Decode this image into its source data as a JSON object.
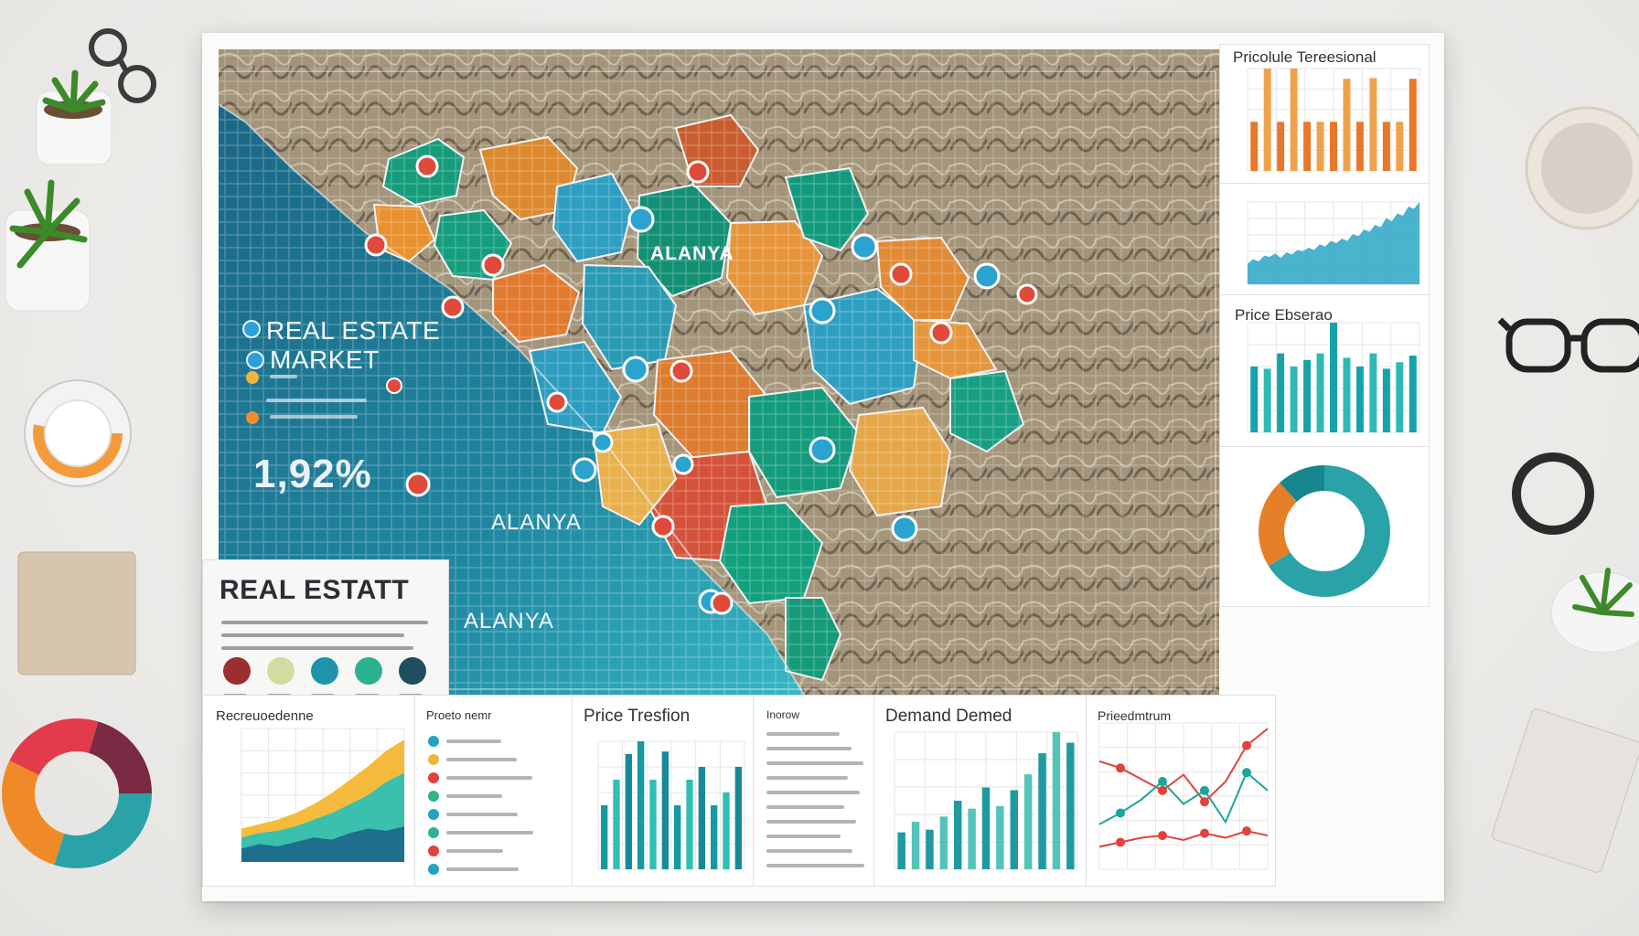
{
  "map": {
    "title_line1": "REAL ESTATE",
    "title_line2": "MARKET",
    "stat_value": "1,92%",
    "center_label": "ALANYA",
    "place_label_1": "ALANYA",
    "place_label_2": "ALANYA"
  },
  "legend": {
    "title": "REAL ESTATT",
    "colors": [
      "#9b2f2f",
      "#d2dca0",
      "#1f94a8",
      "#2cb18f",
      "#1f4f5e"
    ]
  },
  "panels": {
    "price_trends_top": "Pricolule Tereesional",
    "price_ebserao": "Price Ebserao",
    "price_tresfion": "Price Tresfion",
    "demand": "Demand Demed",
    "footer_area_title": "Recreuoedenne",
    "footer_list_title": "Proeto nemr",
    "footer_line_title": "Prieedmtrum",
    "footer_table_title": "Inorow"
  },
  "chart_data": [
    {
      "type": "bar",
      "title": "Pricolule Tereesional",
      "values": [
        72,
        150,
        72,
        150,
        72,
        72,
        72,
        135,
        72,
        136,
        72,
        72,
        135
      ],
      "colors": [
        "#e8772a",
        "#f0a24a"
      ]
    },
    {
      "type": "area",
      "values": [
        18,
        22,
        20,
        25,
        24,
        27,
        23,
        28,
        26,
        30,
        29,
        32,
        30,
        35,
        33,
        38,
        36,
        40,
        38,
        44,
        42,
        48,
        46,
        52,
        50,
        58,
        55,
        62,
        60,
        68,
        66,
        72
      ]
    },
    {
      "type": "bar",
      "title": "Price Ebserao",
      "values": [
        60,
        58,
        72,
        60,
        66,
        72,
        100,
        68,
        60,
        72,
        58,
        64,
        70
      ]
    },
    {
      "type": "pie",
      "slices": [
        {
          "value": 66,
          "color": "#2aa3a8"
        },
        {
          "value": 22,
          "color": "#e57f28"
        },
        {
          "value": 12,
          "color": "#16858f"
        }
      ]
    },
    {
      "type": "area",
      "title": "Recreuoedenne",
      "series": [
        {
          "values": [
            30,
            34,
            38,
            44,
            52,
            62,
            74,
            86,
            100,
            110
          ],
          "color": "#f6b733"
        },
        {
          "values": [
            22,
            26,
            28,
            32,
            38,
            44,
            52,
            60,
            72,
            80
          ],
          "color": "#2fc0b2"
        },
        {
          "values": [
            12,
            16,
            14,
            18,
            22,
            20,
            26,
            30,
            28,
            32
          ],
          "color": "#1b6a8a"
        }
      ]
    },
    {
      "type": "bar",
      "title": "Price Tresfion",
      "values": [
        50,
        70,
        90,
        100,
        70,
        92,
        50,
        70,
        80,
        50,
        60,
        80
      ]
    },
    {
      "type": "bar",
      "title": "Demand Demed",
      "values": [
        28,
        36,
        30,
        40,
        52,
        46,
        62,
        48,
        60,
        72,
        88,
        104,
        96
      ]
    },
    {
      "type": "line",
      "title": "Prieedmtrum",
      "series": [
        {
          "values": [
            96,
            90,
            80,
            70,
            84,
            60,
            78,
            110,
            125
          ],
          "color": "#e3413b"
        },
        {
          "values": [
            40,
            50,
            62,
            78,
            58,
            70,
            42,
            86,
            70
          ],
          "color": "#1aa69b"
        },
        {
          "values": [
            20,
            24,
            28,
            30,
            26,
            32,
            28,
            34,
            30
          ],
          "color": "#e3413b"
        }
      ]
    }
  ]
}
